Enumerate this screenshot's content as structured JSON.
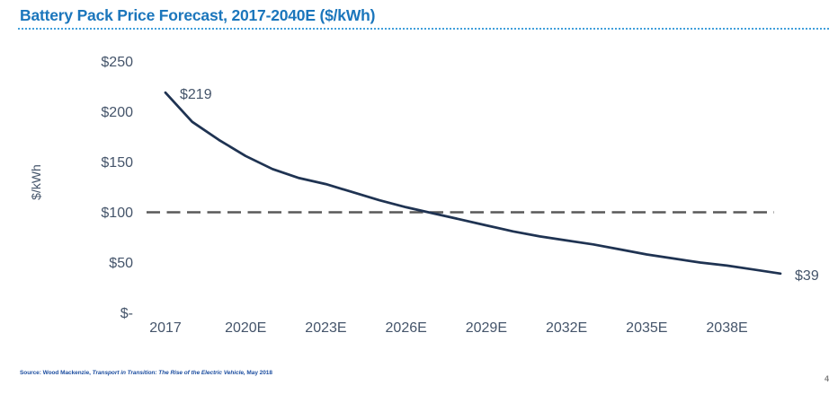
{
  "title": "Battery Pack Price Forecast, 2017-2040E ($/kWh)",
  "colors": {
    "title_blue": "#1b76bc",
    "rule_blue": "#41a0db",
    "axis_text": "#44546a",
    "line_navy": "#1f3352",
    "reference_gray": "#595959",
    "source_blue": "#1e4fa0"
  },
  "source": {
    "prefix": "Source: Wood Mackenzie, ",
    "italic": "Transport in Transition: The Rise of the Electric Vehicle,",
    "suffix": " May 2018"
  },
  "page_fragment": "4",
  "chart_data": {
    "type": "line",
    "title": "Battery Pack Price Forecast, 2017-2040E ($/kWh)",
    "xlabel": "",
    "ylabel": "$/kWh",
    "series_name": "Battery pack price forecast",
    "x": [
      2017,
      2018,
      2019,
      2020,
      2021,
      2022,
      2023,
      2024,
      2025,
      2026,
      2027,
      2028,
      2029,
      2030,
      2031,
      2032,
      2033,
      2034,
      2035,
      2036,
      2037,
      2038,
      2039,
      2040
    ],
    "values": [
      219,
      190,
      172,
      156,
      143,
      134,
      128,
      120,
      112,
      105,
      99,
      93,
      87,
      81,
      76,
      72,
      68,
      63,
      58,
      54,
      50,
      47,
      43,
      39
    ],
    "xlim": [
      2017,
      2040
    ],
    "ylim": [
      0,
      250
    ],
    "grid": false,
    "legend": "none",
    "x_ticks": [
      {
        "year": 2017,
        "label": "2017"
      },
      {
        "year": 2020,
        "label": "2020E"
      },
      {
        "year": 2023,
        "label": "2023E"
      },
      {
        "year": 2026,
        "label": "2026E"
      },
      {
        "year": 2029,
        "label": "2029E"
      },
      {
        "year": 2032,
        "label": "2032E"
      },
      {
        "year": 2035,
        "label": "2035E"
      },
      {
        "year": 2038,
        "label": "2038E"
      }
    ],
    "y_ticks": [
      {
        "value": 250,
        "label": "$250"
      },
      {
        "value": 200,
        "label": "$200"
      },
      {
        "value": 150,
        "label": "$150"
      },
      {
        "value": 100,
        "label": "$100"
      },
      {
        "value": 50,
        "label": "$50"
      },
      {
        "value": 0,
        "label": "$-"
      }
    ],
    "reference_line": {
      "value": 100,
      "style": "dashed"
    },
    "annotations": [
      {
        "text": "$219",
        "year": 2017,
        "value": 219
      },
      {
        "text": "$39",
        "year": 2040,
        "value": 39
      }
    ]
  }
}
